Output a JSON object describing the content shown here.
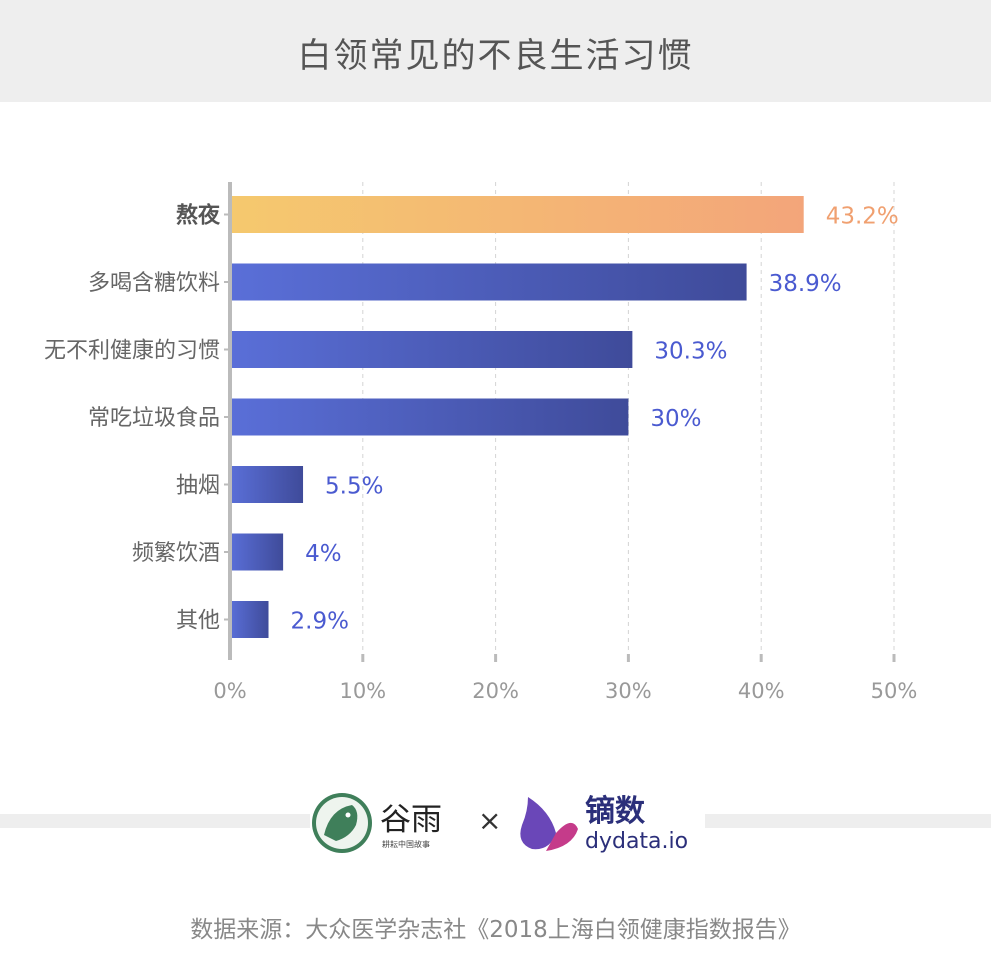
{
  "title": "白领常见的不良生活习惯",
  "chart_data": {
    "type": "bar",
    "orientation": "horizontal",
    "categories": [
      "熬夜",
      "多喝含糖饮料",
      "无不利健康的习惯",
      "常吃垃圾食品",
      "抽烟",
      "频繁饮酒",
      "其他"
    ],
    "values": [
      43.2,
      38.9,
      30.3,
      30,
      5.5,
      4,
      2.9
    ],
    "value_labels": [
      "43.2%",
      "38.9%",
      "30.3%",
      "30%",
      "5.5%",
      "4%",
      "2.9%"
    ],
    "highlight_index": 0,
    "xlim": [
      0,
      50
    ],
    "xticks": [
      0,
      10,
      20,
      30,
      40,
      50
    ],
    "xtick_labels": [
      "0%",
      "10%",
      "20%",
      "30%",
      "40%",
      "50%"
    ],
    "grid": "vertical",
    "colors": {
      "highlight_start": "#f5c96e",
      "highlight_end": "#f3a57a",
      "bar_start": "#5a6fd8",
      "bar_end": "#3f4b9a",
      "highlight_label": "#f0a070",
      "label": "#4a5ad0",
      "axis": "#bbbbbb",
      "grid": "#d4d4d4",
      "category_text": "#666666",
      "highlight_category_text": "#555555"
    }
  },
  "logos": {
    "guyu": "谷雨",
    "guyu_sub": "耕耘中国故事",
    "times": "×",
    "dydata_cn": "镝数",
    "dydata_en": "dydata.io"
  },
  "source": "数据来源：大众医学杂志社《2018上海白领健康指数报告》"
}
